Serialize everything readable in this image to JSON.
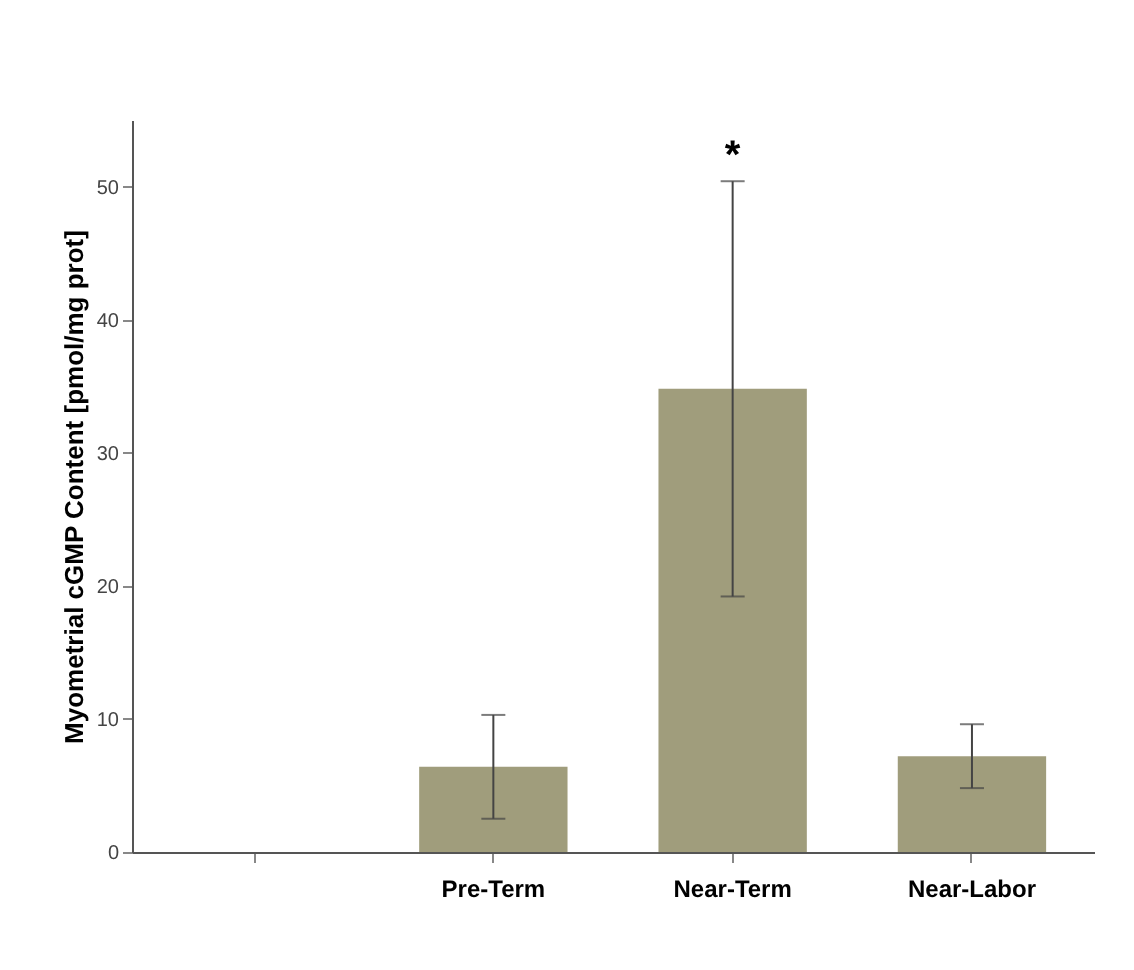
{
  "chart_data": {
    "type": "bar",
    "ylabel": "Myometrial cGMP Content [pmol/mg prot]",
    "categories": [
      null,
      "Pre-Term",
      "Near-Term",
      "Near-Labor"
    ],
    "values": [
      null,
      6.4,
      34.8,
      7.2
    ],
    "errors": [
      null,
      3.9,
      15.6,
      2.4
    ],
    "color": "#a09d7c",
    "ylim": [
      0,
      55
    ],
    "yticks": [
      0,
      10,
      20,
      30,
      40,
      50
    ],
    "grid": false,
    "annotations": [
      "*"
    ]
  }
}
